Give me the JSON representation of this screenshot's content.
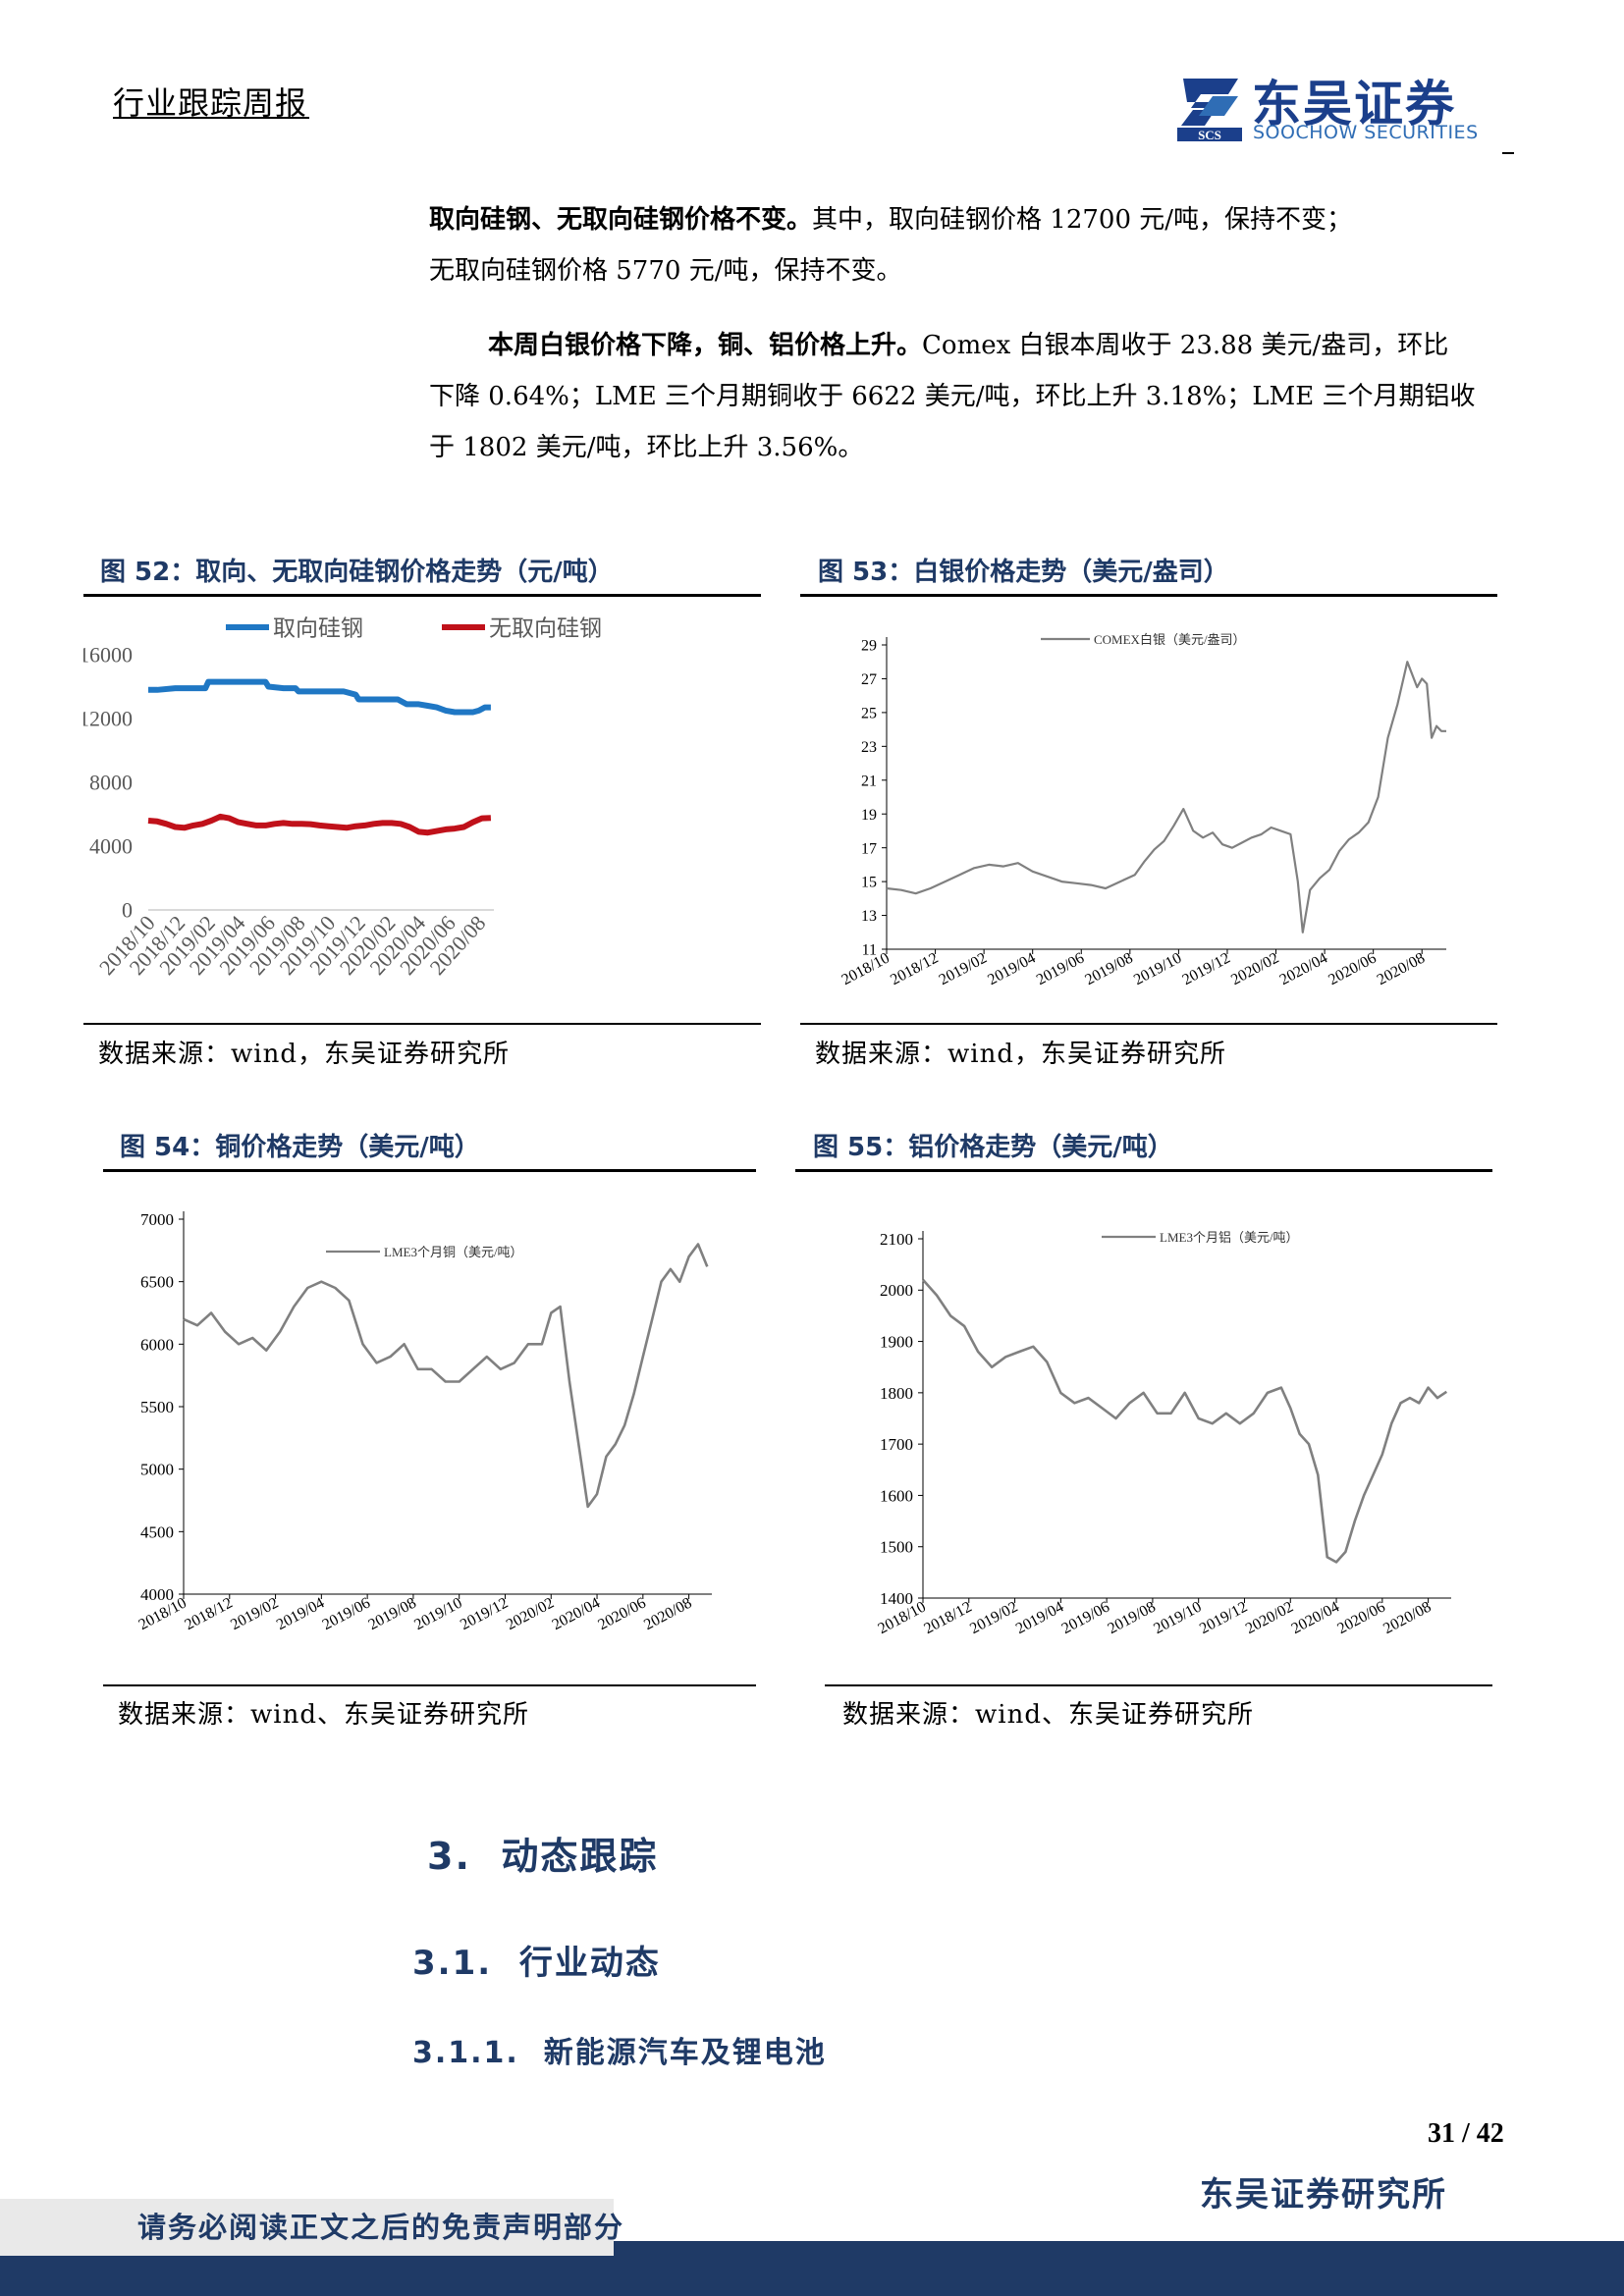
{
  "header": {
    "title": "行业跟踪周报",
    "logo_cn": "东吴证券",
    "logo_en": "SOOCHOW SECURITIES",
    "logo_mark": "SCS"
  },
  "paragraphs": {
    "p1_bold": "取向硅钢、无取向硅钢价格不变。",
    "p1_rest": "其中，取向硅钢价格 12700 元/吨，保持不变；",
    "p1_line2": "无取向硅钢价格 5770 元/吨，保持不变。",
    "p2_bold": "本周白银价格下降，铜、铝价格上升。",
    "p2_rest": "Comex 白银本周收于 23.88 美元/盎司，环比",
    "p2_line2": "下降 0.64%；LME 三个月期铜收于 6622 美元/吨，环比上升 3.18%；LME 三个月期铝收",
    "p2_line3": "于 1802 美元/吨，环比上升 3.56%。"
  },
  "figures": {
    "fig52_title": "图 52：取向、无取向硅钢价格走势（元/吨）",
    "fig53_title": "图 53：白银价格走势（美元/盎司）",
    "fig54_title": "图 54：铜价格走势（美元/吨）",
    "fig55_title": "图 55：铝价格走势（美元/吨）",
    "source_52": "数据来源：wind，东吴证券研究所",
    "source_53": "数据来源：wind，东吴证券研究所",
    "source_54": "数据来源：wind、东吴证券研究所",
    "source_55": "数据来源：wind、东吴证券研究所"
  },
  "chart_data": [
    {
      "id": "fig52",
      "type": "line",
      "x_ticks": [
        "2018/10",
        "2018/12",
        "2019/02",
        "2019/04",
        "2019/06",
        "2019/08",
        "2019/10",
        "2019/12",
        "2020/02",
        "2020/04",
        "2020/06",
        "2020/08"
      ],
      "ylim": [
        0,
        16000
      ],
      "y_ticks": [
        "16000",
        "12000",
        "8000",
        "4000",
        "0"
      ],
      "legend_position": "top",
      "series": [
        {
          "name": "取向硅钢",
          "color": "#1f77c4",
          "x": [
            0,
            0.3,
            0.9,
            1.5,
            1.9,
            2.0,
            2.5,
            3.0,
            3.6,
            3.9,
            4.0,
            4.5,
            4.9,
            5.0,
            5.5,
            5.9,
            6.0,
            6.5,
            6.9,
            7.0,
            7.5,
            8.0,
            8.3,
            8.6,
            9.0,
            9.3,
            9.6,
            9.9,
            10.2,
            10.5,
            10.8,
            11.0,
            11.2,
            11.4
          ],
          "values": [
            13800,
            13800,
            13900,
            13900,
            13900,
            14300,
            14300,
            14300,
            14300,
            14300,
            14000,
            13900,
            13900,
            13700,
            13700,
            13700,
            13700,
            13700,
            13500,
            13200,
            13200,
            13200,
            13200,
            12900,
            12900,
            12800,
            12700,
            12500,
            12400,
            12400,
            12400,
            12500,
            12700,
            12700
          ]
        },
        {
          "name": "无取向硅钢",
          "color": "#c0111a",
          "x": [
            0,
            0.3,
            0.6,
            0.9,
            1.2,
            1.5,
            1.8,
            2.1,
            2.4,
            2.7,
            3.0,
            3.3,
            3.6,
            3.9,
            4.2,
            4.5,
            4.8,
            5.1,
            5.4,
            5.7,
            6.0,
            6.3,
            6.6,
            6.9,
            7.2,
            7.5,
            7.8,
            8.1,
            8.4,
            8.7,
            9.0,
            9.3,
            9.6,
            9.9,
            10.2,
            10.5,
            10.8,
            11.1,
            11.4
          ],
          "values": [
            5600,
            5550,
            5400,
            5200,
            5150,
            5300,
            5400,
            5600,
            5850,
            5750,
            5500,
            5400,
            5300,
            5300,
            5400,
            5450,
            5400,
            5400,
            5380,
            5300,
            5250,
            5200,
            5150,
            5250,
            5300,
            5400,
            5450,
            5450,
            5400,
            5200,
            4900,
            4850,
            4950,
            5050,
            5100,
            5200,
            5500,
            5750,
            5770
          ]
        }
      ]
    },
    {
      "id": "fig53",
      "type": "line",
      "x_ticks": [
        "2018/10",
        "2018/12",
        "2019/02",
        "2019/04",
        "2019/06",
        "2019/08",
        "2019/10",
        "2019/12",
        "2020/02",
        "2020/04",
        "2020/06",
        "2020/08"
      ],
      "ylim": [
        11,
        29
      ],
      "y_ticks": [
        "29",
        "27",
        "25",
        "23",
        "21",
        "19",
        "17",
        "15",
        "13",
        "11"
      ],
      "legend_position": "top",
      "series": [
        {
          "name": "COMEX白银（美元/盎司）",
          "color": "#808080",
          "x": [
            0,
            0.3,
            0.6,
            0.9,
            1.2,
            1.5,
            1.8,
            2.1,
            2.4,
            2.7,
            3.0,
            3.3,
            3.6,
            3.9,
            4.2,
            4.5,
            4.8,
            5.1,
            5.3,
            5.5,
            5.7,
            5.9,
            6.1,
            6.3,
            6.5,
            6.7,
            6.9,
            7.1,
            7.3,
            7.5,
            7.7,
            7.9,
            8.1,
            8.3,
            8.45,
            8.55,
            8.7,
            8.9,
            9.1,
            9.3,
            9.5,
            9.7,
            9.9,
            10.1,
            10.3,
            10.5,
            10.7,
            10.9,
            11.0,
            11.1,
            11.2,
            11.3,
            11.4,
            11.5
          ],
          "values": [
            14.6,
            14.5,
            14.3,
            14.6,
            15.0,
            15.4,
            15.8,
            16.0,
            15.9,
            16.1,
            15.6,
            15.3,
            15.0,
            14.9,
            14.8,
            14.6,
            15.0,
            15.4,
            16.2,
            16.9,
            17.4,
            18.3,
            19.3,
            18.0,
            17.6,
            17.9,
            17.2,
            17.0,
            17.3,
            17.6,
            17.8,
            18.2,
            18.0,
            17.8,
            15.0,
            12.0,
            14.5,
            15.2,
            15.7,
            16.8,
            17.5,
            17.9,
            18.5,
            20.0,
            23.5,
            25.5,
            28.0,
            26.5,
            27.0,
            26.7,
            23.5,
            24.2,
            23.9,
            23.9
          ]
        }
      ]
    },
    {
      "id": "fig54",
      "type": "line",
      "x_ticks": [
        "2018/10",
        "2018/12",
        "2019/02",
        "2019/04",
        "2019/06",
        "2019/08",
        "2019/10",
        "2019/12",
        "2020/02",
        "2020/04",
        "2020/06",
        "2020/08"
      ],
      "ylim": [
        4000,
        7000
      ],
      "y_ticks": [
        "7000",
        "6500",
        "6000",
        "5500",
        "5000",
        "4500",
        "4000"
      ],
      "legend_position": "top",
      "series": [
        {
          "name": "LME3个月铜（美元/吨）",
          "color": "#808080",
          "x": [
            0,
            0.3,
            0.6,
            0.9,
            1.2,
            1.5,
            1.8,
            2.1,
            2.4,
            2.7,
            3.0,
            3.3,
            3.6,
            3.9,
            4.2,
            4.5,
            4.8,
            5.1,
            5.4,
            5.7,
            6.0,
            6.3,
            6.6,
            6.9,
            7.2,
            7.5,
            7.8,
            8.0,
            8.2,
            8.4,
            8.6,
            8.8,
            9.0,
            9.2,
            9.4,
            9.6,
            9.8,
            10.0,
            10.2,
            10.4,
            10.6,
            10.8,
            11.0,
            11.2,
            11.4
          ],
          "values": [
            6200,
            6150,
            6250,
            6100,
            6000,
            6050,
            5950,
            6100,
            6300,
            6450,
            6500,
            6450,
            6350,
            6000,
            5850,
            5900,
            6000,
            5800,
            5800,
            5700,
            5700,
            5800,
            5900,
            5800,
            5850,
            6000,
            6000,
            6250,
            6300,
            5700,
            5200,
            4700,
            4800,
            5100,
            5200,
            5350,
            5600,
            5900,
            6200,
            6500,
            6600,
            6500,
            6700,
            6800,
            6620
          ]
        }
      ]
    },
    {
      "id": "fig55",
      "type": "line",
      "x_ticks": [
        "2018/10",
        "2018/12",
        "2019/02",
        "2019/04",
        "2019/06",
        "2019/08",
        "2019/10",
        "2019/12",
        "2020/02",
        "2020/04",
        "2020/06",
        "2020/08"
      ],
      "ylim": [
        1400,
        2100
      ],
      "y_ticks": [
        "2100",
        "2000",
        "1900",
        "1800",
        "1700",
        "1600",
        "1500",
        "1400"
      ],
      "legend_position": "top",
      "series": [
        {
          "name": "LME3个月铝（美元/吨）",
          "color": "#808080",
          "x": [
            0,
            0.3,
            0.6,
            0.9,
            1.2,
            1.5,
            1.8,
            2.1,
            2.4,
            2.7,
            3.0,
            3.3,
            3.6,
            3.9,
            4.2,
            4.5,
            4.8,
            5.1,
            5.4,
            5.7,
            6.0,
            6.3,
            6.6,
            6.9,
            7.2,
            7.5,
            7.8,
            8.0,
            8.2,
            8.4,
            8.6,
            8.8,
            9.0,
            9.2,
            9.4,
            9.6,
            9.8,
            10.0,
            10.2,
            10.4,
            10.6,
            10.8,
            11.0,
            11.2,
            11.4
          ],
          "values": [
            2020,
            1990,
            1950,
            1930,
            1880,
            1850,
            1870,
            1880,
            1890,
            1860,
            1800,
            1780,
            1790,
            1770,
            1750,
            1780,
            1800,
            1760,
            1760,
            1800,
            1750,
            1740,
            1760,
            1740,
            1760,
            1800,
            1810,
            1770,
            1720,
            1700,
            1640,
            1480,
            1470,
            1490,
            1550,
            1600,
            1640,
            1680,
            1740,
            1780,
            1790,
            1780,
            1810,
            1790,
            1802
          ]
        }
      ]
    }
  ],
  "sections": {
    "h1_num": "3.",
    "h1_text": "动态跟踪",
    "h2_num": "3.1.",
    "h2_text": "行业动态",
    "h3_num": "3.1.1.",
    "h3_text": "新能源汽车及锂电池"
  },
  "footer": {
    "page": "31 / 42",
    "institute": "东吴证券研究所",
    "disclaimer": "请务必阅读正文之后的免责声明部分"
  }
}
